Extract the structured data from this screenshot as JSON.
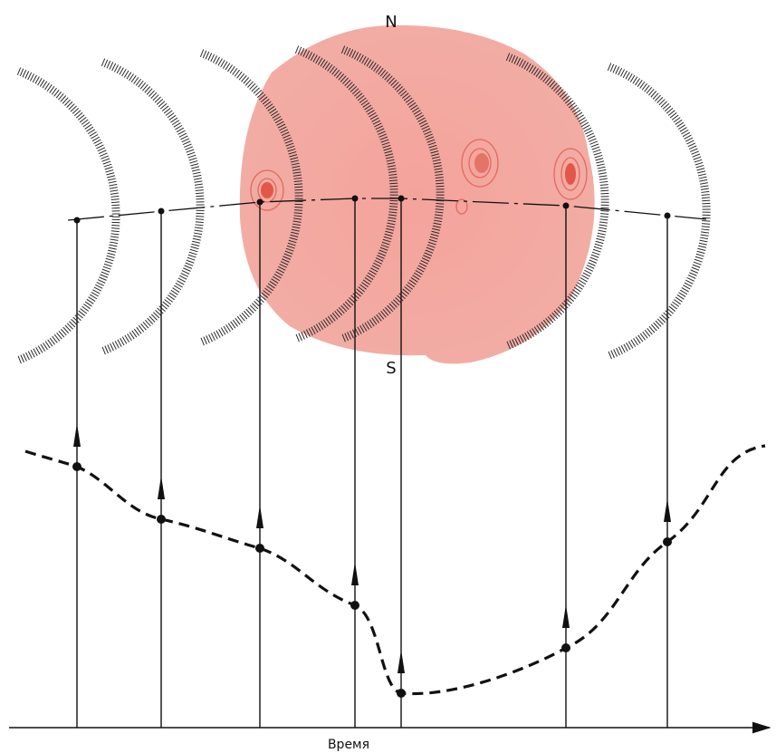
{
  "labels": {
    "north": "N",
    "south": "S"
  },
  "axis": {
    "label": "Время"
  }
}
